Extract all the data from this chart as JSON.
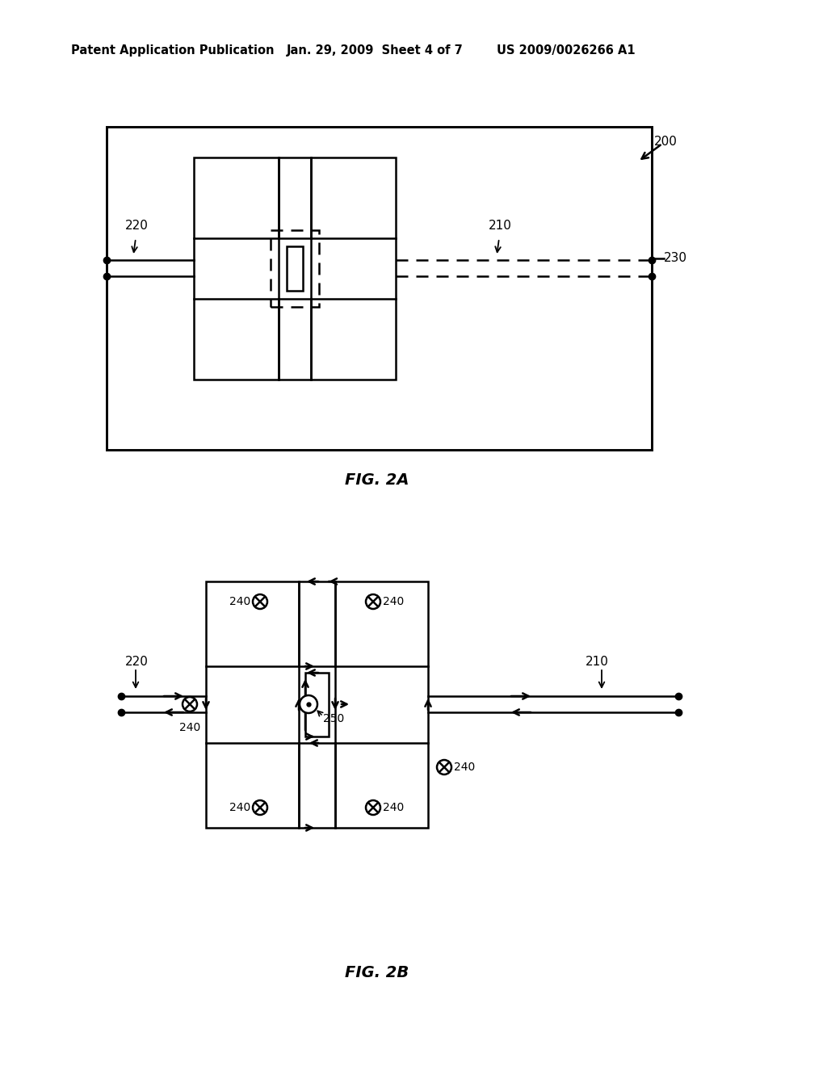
{
  "bg_color": "#ffffff",
  "header_text1": "Patent Application Publication",
  "header_text2": "Jan. 29, 2009  Sheet 4 of 7",
  "header_text3": "US 2009/0026266 A1",
  "fig2a_label": "FIG. 2A",
  "fig2b_label": "FIG. 2B",
  "label_200": "200",
  "label_210": "210",
  "label_220": "220",
  "label_230": "230",
  "label_240": "240",
  "label_250": "250"
}
